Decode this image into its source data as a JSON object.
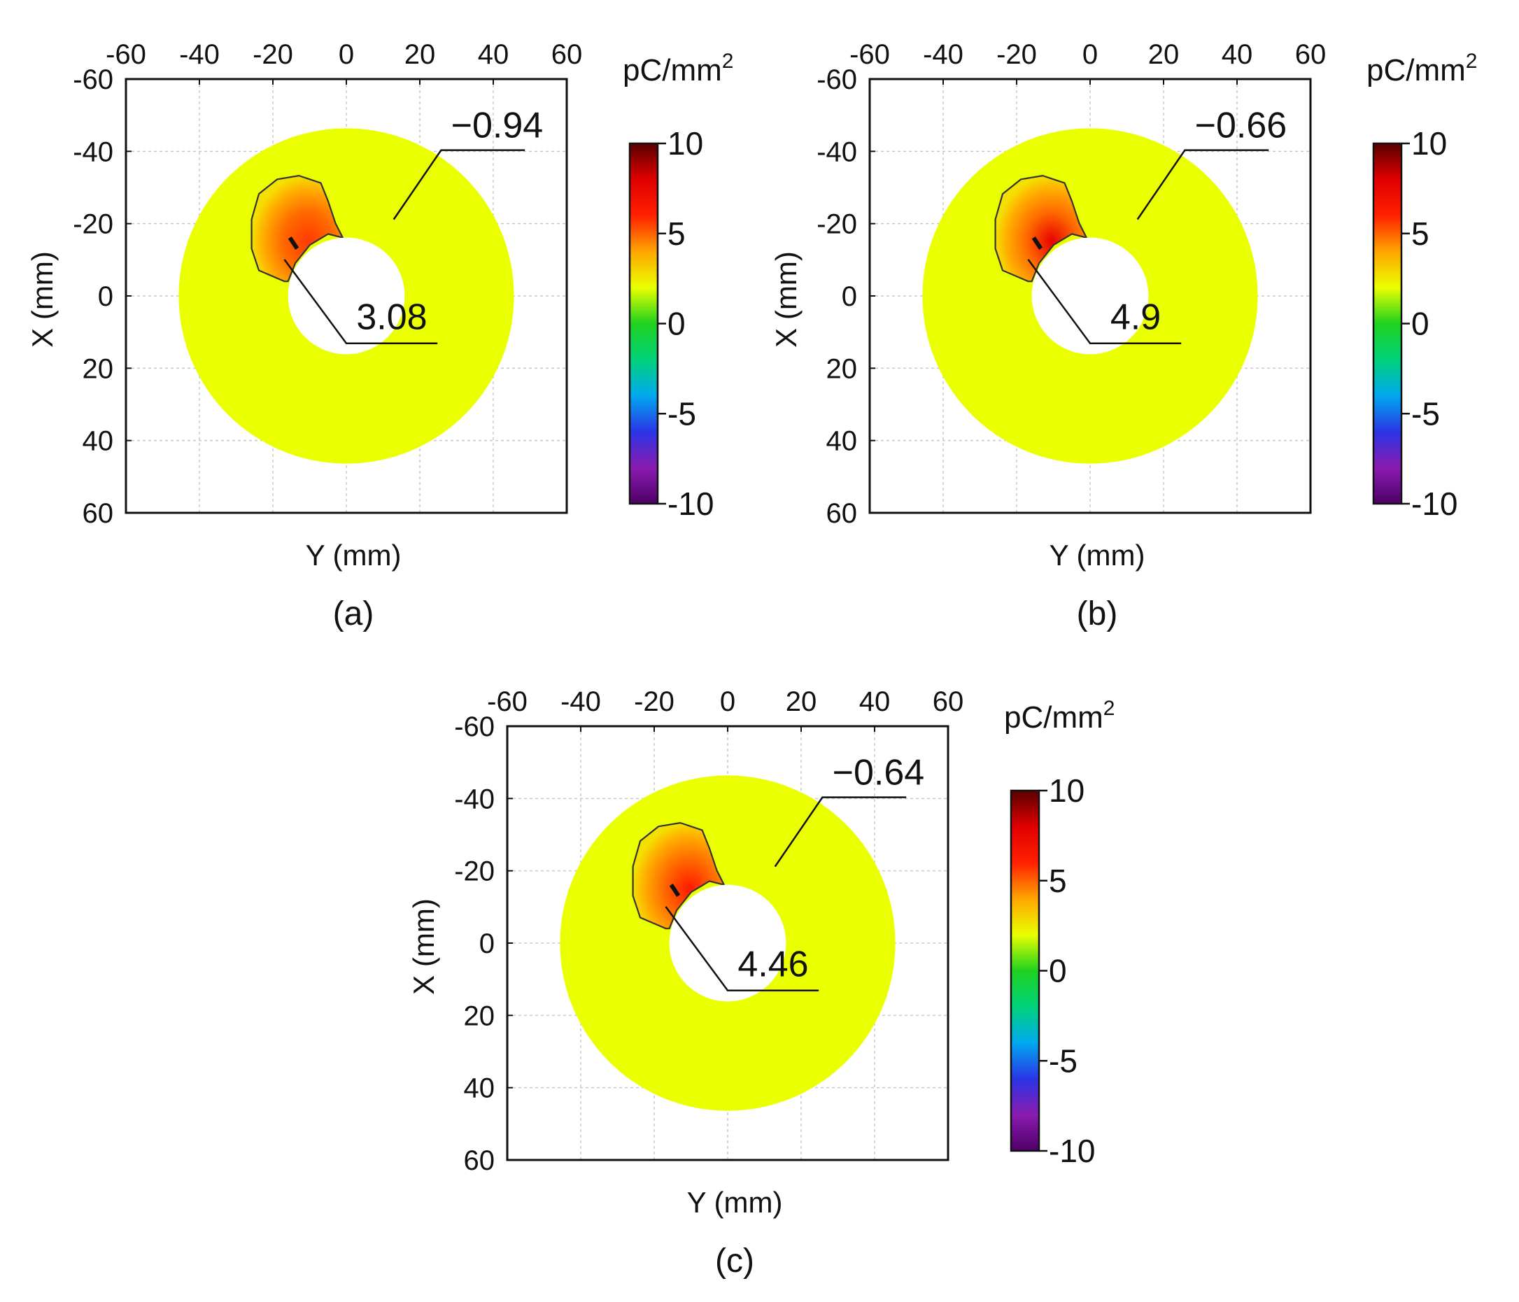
{
  "chart_data": [
    {
      "type": "heatmap",
      "panel_label": "(a)",
      "xlabel": "Y (mm)",
      "ylabel": "X (mm)",
      "x_ticks": [
        "-60",
        "-40",
        "-20",
        "0",
        "20",
        "40",
        "60"
      ],
      "y_ticks": [
        "-60",
        "-40",
        "-20",
        "0",
        "20",
        "40",
        "60"
      ],
      "xlim": [
        -60,
        60
      ],
      "ylim": [
        -60,
        60
      ],
      "grid": true,
      "annulus": {
        "inner_radius": 16,
        "outer_radius": 46
      },
      "colorbar": {
        "unit": "pC/mm",
        "unit_sup": "2",
        "ticks": [
          "10",
          "5",
          "0",
          "-5",
          "-10"
        ],
        "range": [
          -10,
          10
        ]
      },
      "annotations": [
        {
          "label": "−0.94",
          "value": -0.94,
          "kind": "min"
        },
        {
          "label": "3.08",
          "value": 3.08,
          "kind": "max"
        }
      ]
    },
    {
      "type": "heatmap",
      "panel_label": "(b)",
      "xlabel": "Y (mm)",
      "ylabel": "X (mm)",
      "x_ticks": [
        "-60",
        "-40",
        "-20",
        "0",
        "20",
        "40",
        "60"
      ],
      "y_ticks": [
        "-60",
        "-40",
        "-20",
        "0",
        "20",
        "40",
        "60"
      ],
      "xlim": [
        -60,
        60
      ],
      "ylim": [
        -60,
        60
      ],
      "grid": true,
      "annulus": {
        "inner_radius": 16,
        "outer_radius": 46
      },
      "colorbar": {
        "unit": "pC/mm",
        "unit_sup": "2",
        "ticks": [
          "10",
          "5",
          "0",
          "-5",
          "-10"
        ],
        "range": [
          -10,
          10
        ]
      },
      "annotations": [
        {
          "label": "−0.66",
          "value": -0.66,
          "kind": "min"
        },
        {
          "label": "4.9",
          "value": 4.9,
          "kind": "max"
        }
      ]
    },
    {
      "type": "heatmap",
      "panel_label": "(c)",
      "xlabel": "Y (mm)",
      "ylabel": "X (mm)",
      "x_ticks": [
        "-60",
        "-40",
        "-20",
        "0",
        "20",
        "40",
        "60"
      ],
      "y_ticks": [
        "-60",
        "-40",
        "-20",
        "0",
        "20",
        "40",
        "60"
      ],
      "xlim": [
        -60,
        60
      ],
      "ylim": [
        -60,
        60
      ],
      "grid": true,
      "annulus": {
        "inner_radius": 16,
        "outer_radius": 46
      },
      "colorbar": {
        "unit": "pC/mm",
        "unit_sup": "2",
        "ticks": [
          "10",
          "5",
          "0",
          "-5",
          "-10"
        ],
        "range": [
          -10,
          10
        ]
      },
      "annotations": [
        {
          "label": "−0.64",
          "value": -0.64,
          "kind": "min"
        },
        {
          "label": "4.46",
          "value": 4.46,
          "kind": "max"
        }
      ]
    }
  ],
  "colors": {
    "background": "#eaff00",
    "outline": "#333333",
    "grid": "#c8c8c8",
    "colormap": [
      "#4d0066",
      "#8a1bb0",
      "#2a35e6",
      "#00a8f0",
      "#00d27a",
      "#1fd21f",
      "#eaff00",
      "#ffa500",
      "#ff2000",
      "#e00000",
      "#5a0000"
    ]
  }
}
